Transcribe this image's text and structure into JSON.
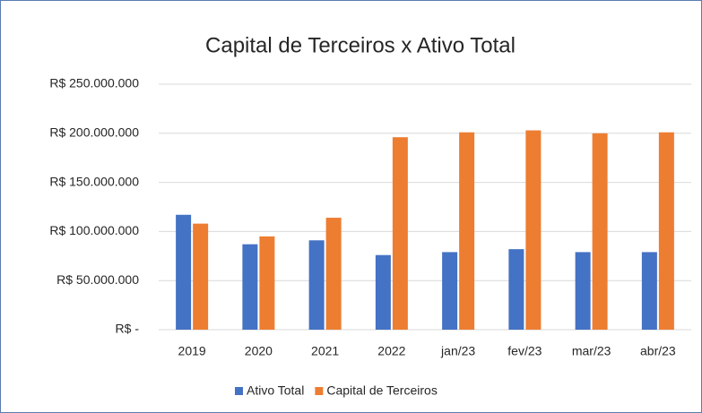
{
  "chart_data": {
    "type": "bar",
    "title": "Capital de Terceiros x Ativo Total",
    "categories": [
      "2019",
      "2020",
      "2021",
      "2022",
      "jan/23",
      "fev/23",
      "mar/23",
      "abr/23"
    ],
    "series": [
      {
        "name": "Ativo Total",
        "color": "#4472c4",
        "values": [
          117000000,
          87000000,
          91000000,
          76000000,
          79000000,
          82000000,
          79000000,
          79000000
        ]
      },
      {
        "name": "Capital de Terceiros",
        "color": "#ed7d31",
        "values": [
          108000000,
          95000000,
          114000000,
          196000000,
          201000000,
          203000000,
          200000000,
          201000000
        ]
      }
    ],
    "ylim": [
      0,
      250000000
    ],
    "yticks": [
      {
        "value": 0,
        "label": "R$ -"
      },
      {
        "value": 50000000,
        "label": "R$ 50.000.000"
      },
      {
        "value": 100000000,
        "label": "R$ 100.000.000"
      },
      {
        "value": 150000000,
        "label": "R$ 150.000.000"
      },
      {
        "value": 200000000,
        "label": "R$ 200.000.000"
      },
      {
        "value": 250000000,
        "label": "R$ 250.000.000"
      }
    ],
    "grid": true,
    "legend": "bottom"
  }
}
